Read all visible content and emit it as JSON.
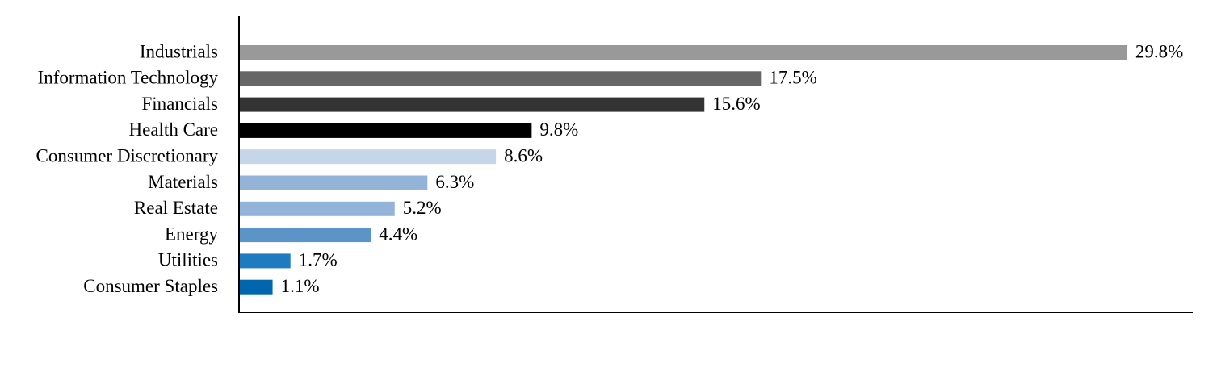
{
  "chart_data": {
    "type": "hbar",
    "categories": [
      "Industrials",
      "Information Technology",
      "Financials",
      "Health Care",
      "Consumer Discretionary",
      "Materials",
      "Real Estate",
      "Energy",
      "Utilities",
      "Consumer Staples"
    ],
    "values": [
      29.8,
      17.5,
      15.6,
      9.8,
      8.6,
      6.3,
      5.2,
      4.4,
      1.7,
      1.1
    ],
    "value_labels": [
      "29.8%",
      "17.5%",
      "15.6%",
      "9.8%",
      "8.6%",
      "6.3%",
      "5.2%",
      "4.4%",
      "1.7%",
      "1.1%"
    ],
    "colors": [
      "#999999",
      "#666666",
      "#333333",
      "#000000",
      "#c5d5ea",
      "#94b3d9",
      "#94b3d9",
      "#5b95c8",
      "#1f7bbf",
      "#0066ad"
    ],
    "xlim": [
      0,
      32
    ]
  }
}
